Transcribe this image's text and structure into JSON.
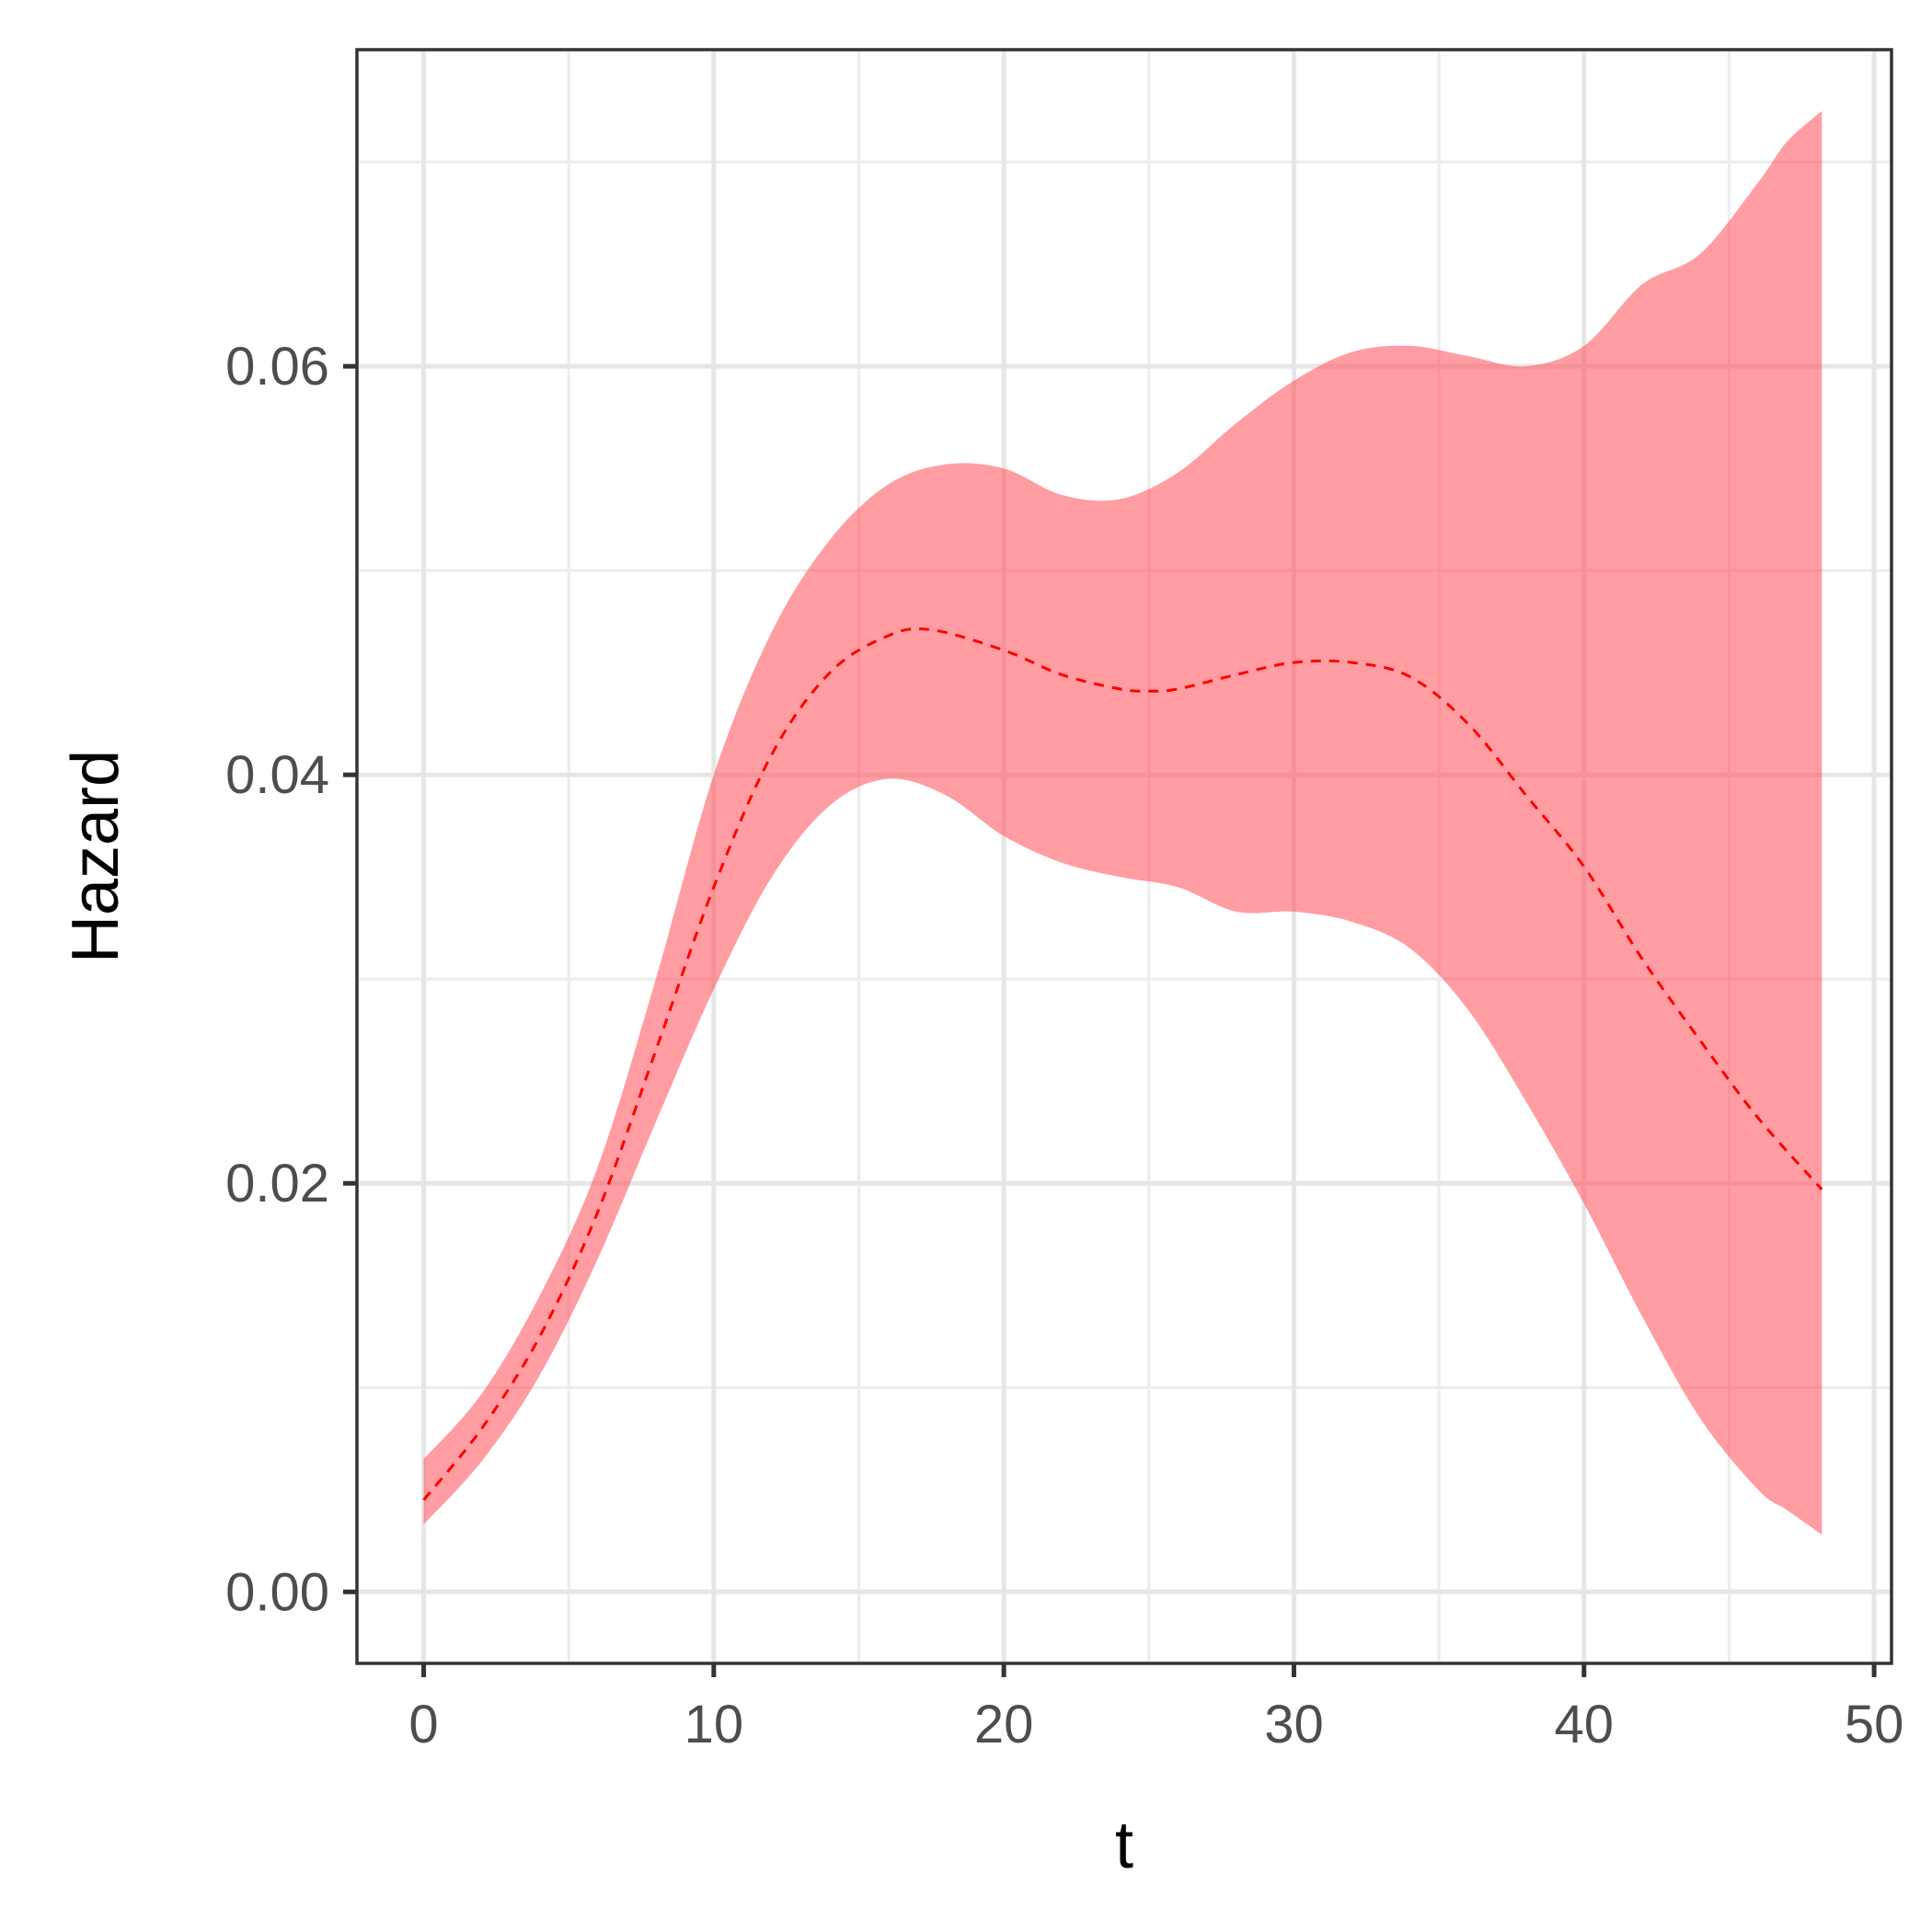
{
  "chart_data": {
    "type": "line",
    "title": "",
    "xlabel": "t",
    "ylabel": "Hazard",
    "xlim": [
      -2.3,
      50.6
    ],
    "ylim": [
      -0.0035,
      0.0755
    ],
    "x_ticks": [
      0,
      10,
      20,
      30,
      40,
      50
    ],
    "x_tick_labels": [
      "0",
      "10",
      "20",
      "30",
      "40",
      "50"
    ],
    "y_ticks": [
      0.0,
      0.02,
      0.04,
      0.06
    ],
    "y_tick_labels": [
      "0.00",
      "0.02",
      "0.04",
      "0.06"
    ],
    "x_minor_ticks": [
      5,
      15,
      25,
      35,
      45
    ],
    "y_minor_ticks": [
      0.01,
      0.03,
      0.05,
      0.07
    ],
    "grid": true,
    "colors": {
      "ribbon": "#ff4d55",
      "line": "#ff0000",
      "grid": "#e6e6e6",
      "border": "#333333"
    },
    "series": [
      {
        "type": "ribbon",
        "x": [
          0,
          2,
          4,
          6,
          8,
          10,
          12,
          14,
          16,
          18,
          20,
          22,
          24,
          26,
          28,
          30,
          32,
          34,
          36,
          38,
          40,
          42,
          44,
          46,
          47,
          48.2
        ],
        "lower": [
          0.0033,
          0.0064,
          0.0106,
          0.0163,
          0.023,
          0.0295,
          0.035,
          0.0385,
          0.0398,
          0.039,
          0.037,
          0.0357,
          0.035,
          0.0345,
          0.0333,
          0.0333,
          0.0328,
          0.0315,
          0.0285,
          0.024,
          0.019,
          0.0135,
          0.0085,
          0.005,
          0.004,
          0.0028
        ],
        "upper": [
          0.0065,
          0.0097,
          0.0145,
          0.0208,
          0.03,
          0.04,
          0.047,
          0.0515,
          0.0542,
          0.0552,
          0.055,
          0.0537,
          0.0535,
          0.0548,
          0.0572,
          0.0593,
          0.0607,
          0.061,
          0.0605,
          0.06,
          0.061,
          0.064,
          0.0655,
          0.069,
          0.071,
          0.0725
        ]
      },
      {
        "type": "line",
        "style": "dashed",
        "x": [
          0,
          2,
          4,
          6,
          8,
          10,
          12,
          14,
          16,
          17.5,
          20,
          22,
          24,
          25,
          26,
          28,
          30,
          32,
          34,
          36,
          38,
          40,
          42,
          44,
          46,
          48.2
        ],
        "y": [
          0.0045,
          0.008,
          0.0125,
          0.0186,
          0.0265,
          0.0345,
          0.041,
          0.045,
          0.0468,
          0.0471,
          0.0461,
          0.0449,
          0.0442,
          0.0441,
          0.0442,
          0.0449,
          0.0455,
          0.0455,
          0.0448,
          0.0425,
          0.039,
          0.0355,
          0.031,
          0.027,
          0.0232,
          0.0197
        ]
      }
    ]
  }
}
